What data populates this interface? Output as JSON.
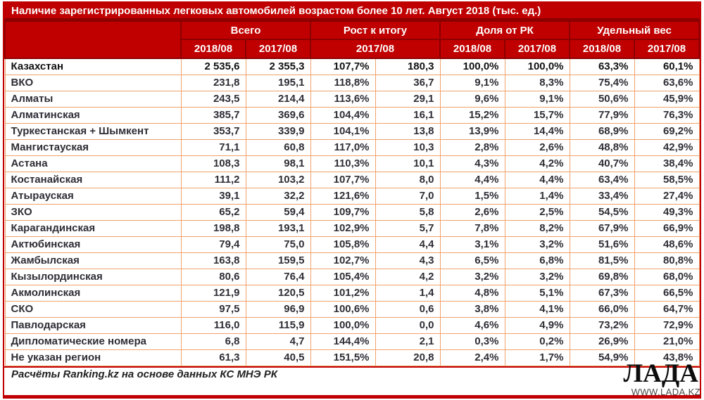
{
  "chart_data": {
    "type": "table",
    "title": "Наличие зарегистрированных легковых автомобилей возрастом более 10 лет. Август 2018 (тыс. ед.)",
    "column_groups": [
      "Всего",
      "Рост к итогу",
      "Доля от РК",
      "Удельный вес"
    ],
    "sub_columns": [
      "2018/08",
      "2017/08",
      "2017/08",
      "2018/08",
      "2017/08",
      "2018/08",
      "2017/08"
    ],
    "rows": [
      {
        "region": "Казахстан",
        "values": [
          "2 535,6",
          "2 355,3",
          "107,7%",
          "180,3",
          "100,0%",
          "100,0%",
          "63,3%",
          "60,1%"
        ]
      },
      {
        "region": "ВКО",
        "values": [
          "231,8",
          "195,1",
          "118,8%",
          "36,7",
          "9,1%",
          "8,3%",
          "75,4%",
          "63,6%"
        ]
      },
      {
        "region": "Алматы",
        "values": [
          "243,5",
          "214,4",
          "113,6%",
          "29,1",
          "9,6%",
          "9,1%",
          "50,6%",
          "45,9%"
        ]
      },
      {
        "region": "Алматинская",
        "values": [
          "385,7",
          "369,6",
          "104,4%",
          "16,1",
          "15,2%",
          "15,7%",
          "77,9%",
          "76,3%"
        ]
      },
      {
        "region": "Туркестанская + Шымкент",
        "values": [
          "353,7",
          "339,9",
          "104,1%",
          "13,8",
          "13,9%",
          "14,4%",
          "68,9%",
          "69,2%"
        ]
      },
      {
        "region": "Мангистауская",
        "values": [
          "71,1",
          "60,8",
          "117,0%",
          "10,3",
          "2,8%",
          "2,6%",
          "48,8%",
          "42,9%"
        ]
      },
      {
        "region": "Астана",
        "values": [
          "108,3",
          "98,1",
          "110,3%",
          "10,1",
          "4,3%",
          "4,2%",
          "40,7%",
          "38,4%"
        ]
      },
      {
        "region": "Костанайская",
        "values": [
          "111,2",
          "103,2",
          "107,7%",
          "8,0",
          "4,4%",
          "4,4%",
          "63,4%",
          "58,5%"
        ]
      },
      {
        "region": "Атырауская",
        "values": [
          "39,1",
          "32,2",
          "121,6%",
          "7,0",
          "1,5%",
          "1,4%",
          "33,4%",
          "27,4%"
        ]
      },
      {
        "region": "ЗКО",
        "values": [
          "65,2",
          "59,4",
          "109,7%",
          "5,8",
          "2,6%",
          "2,5%",
          "54,5%",
          "49,3%"
        ]
      },
      {
        "region": "Карагандинская",
        "values": [
          "198,8",
          "193,1",
          "102,9%",
          "5,7",
          "7,8%",
          "8,2%",
          "67,9%",
          "66,9%"
        ]
      },
      {
        "region": "Актюбинская",
        "values": [
          "79,4",
          "75,0",
          "105,8%",
          "4,4",
          "3,1%",
          "3,2%",
          "51,6%",
          "48,6%"
        ]
      },
      {
        "region": "Жамбылская",
        "values": [
          "163,8",
          "159,5",
          "102,7%",
          "4,3",
          "6,5%",
          "6,8%",
          "81,5%",
          "80,8%"
        ]
      },
      {
        "region": "Кызылординская",
        "values": [
          "80,6",
          "76,4",
          "105,4%",
          "4,2",
          "3,2%",
          "3,2%",
          "69,8%",
          "68,0%"
        ]
      },
      {
        "region": "Акмолинская",
        "values": [
          "121,9",
          "120,5",
          "101,2%",
          "1,4",
          "4,8%",
          "5,1%",
          "67,3%",
          "66,5%"
        ]
      },
      {
        "region": "СКО",
        "values": [
          "97,5",
          "96,9",
          "100,6%",
          "0,6",
          "3,8%",
          "4,1%",
          "66,0%",
          "64,7%"
        ]
      },
      {
        "region": "Павлодарская",
        "values": [
          "116,0",
          "115,9",
          "100,0%",
          "0,0",
          "4,6%",
          "4,9%",
          "73,2%",
          "72,9%"
        ]
      },
      {
        "region": "Дипломатические номера",
        "values": [
          "6,8",
          "4,7",
          "144,4%",
          "2,1",
          "0,3%",
          "0,2%",
          "26,9%",
          "21,0%"
        ]
      },
      {
        "region": "Не указан регион",
        "values": [
          "61,3",
          "40,5",
          "151,5%",
          "20,8",
          "2,4%",
          "1,7%",
          "54,9%",
          "43,8%"
        ]
      }
    ]
  },
  "footer": {
    "note": "Расчёты Ranking.kz на основе данных КС МНЭ РК"
  },
  "watermark": {
    "logo": "ЛАДА",
    "url": "WWW.LADA.KZ"
  },
  "colors": {
    "accent_red": "#C00000",
    "dark_red": "#8B0000",
    "grid_peach": "#F0A26B",
    "text_dark": "#2E2E36"
  }
}
